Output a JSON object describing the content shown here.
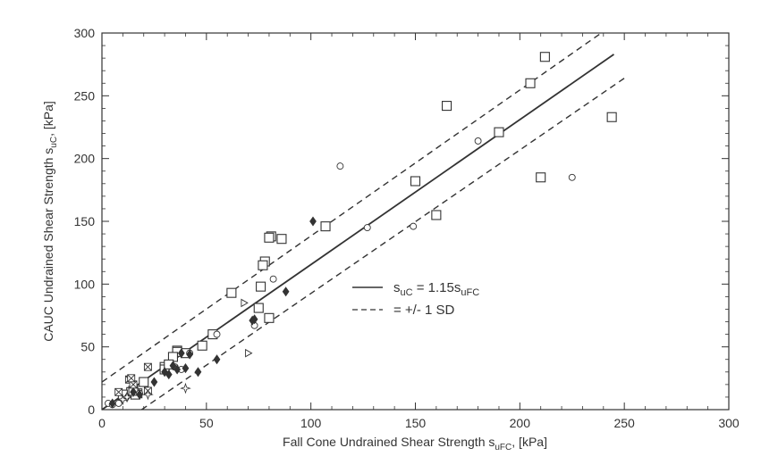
{
  "chart_data": {
    "type": "scatter",
    "title": "",
    "xlabel": "Fall Cone Undrained Shear Strength s",
    "xlabel_sub": "uFC",
    "xlabel_suffix": ", [kPa]",
    "ylabel": "CAUC Undrained Shear Strength s",
    "ylabel_sub": "uC",
    "ylabel_suffix": ", [kPa]",
    "xlim": [
      0,
      300
    ],
    "ylim": [
      0,
      300
    ],
    "x_ticks": [
      "0",
      "50",
      "100",
      "150",
      "200",
      "250",
      "300"
    ],
    "y_ticks": [
      "0",
      "50",
      "100",
      "150",
      "200",
      "250",
      "300"
    ],
    "grid": false,
    "legend_position": "center-right",
    "legend": [
      {
        "style": "solid",
        "pre": "s",
        "sub1": "uC",
        "mid": " = 1.15s",
        "sub2": "uFC"
      },
      {
        "style": "dashed",
        "text": "=  +/- 1 SD"
      }
    ],
    "lines": [
      {
        "name": "fit",
        "style": "solid",
        "x": [
          0,
          245
        ],
        "y": [
          0,
          283
        ]
      },
      {
        "name": "upper SD",
        "style": "dashed",
        "x": [
          0,
          239
        ],
        "y": [
          22,
          300
        ]
      },
      {
        "name": "lower SD",
        "style": "dashed",
        "x": [
          19,
          250
        ],
        "y": [
          0,
          264
        ]
      }
    ],
    "series": [
      {
        "name": "square",
        "marker": "square",
        "x": [
          212,
          205,
          165,
          244,
          190,
          150,
          160,
          210,
          107,
          86,
          81,
          80,
          78,
          77,
          76,
          62,
          75,
          80,
          48,
          53,
          40,
          36,
          36,
          34,
          30,
          30,
          32,
          20,
          14,
          10,
          17,
          16,
          15
        ],
        "y": [
          281,
          260,
          242,
          233,
          221,
          182,
          155,
          185,
          146,
          136,
          138,
          137,
          118,
          115,
          98,
          93,
          81,
          73,
          51,
          60,
          45,
          47,
          46,
          42,
          34,
          32,
          36,
          22,
          14,
          12,
          13,
          12,
          15
        ]
      },
      {
        "name": "circle",
        "marker": "circle",
        "x": [
          114,
          180,
          225,
          127,
          149,
          82,
          73,
          55,
          35,
          38,
          42,
          3,
          5,
          8,
          18
        ],
        "y": [
          194,
          214,
          185,
          145,
          146,
          104,
          67,
          60,
          34,
          32,
          45,
          5,
          4,
          5,
          13
        ]
      },
      {
        "name": "filled diamond",
        "marker": "diamond",
        "x": [
          101,
          72,
          73,
          88,
          30,
          32,
          40,
          46,
          36,
          38,
          15,
          55,
          42,
          34,
          18,
          25,
          12,
          5
        ],
        "y": [
          150,
          71,
          72,
          94,
          30,
          28,
          33,
          30,
          32,
          45,
          14,
          40,
          44,
          35,
          12,
          22,
          10,
          5
        ]
      },
      {
        "name": "triangle right",
        "marker": "triangle",
        "x": [
          68,
          70
        ],
        "y": [
          85,
          45
        ]
      },
      {
        "name": "crossed square",
        "marker": "xsquare",
        "x": [
          22,
          13,
          8,
          15,
          14,
          22
        ],
        "y": [
          34,
          24,
          14,
          20,
          25,
          15
        ]
      },
      {
        "name": "star",
        "marker": "star",
        "x": [
          40,
          22,
          10,
          12
        ],
        "y": [
          17,
          12,
          8,
          10
        ]
      }
    ]
  }
}
